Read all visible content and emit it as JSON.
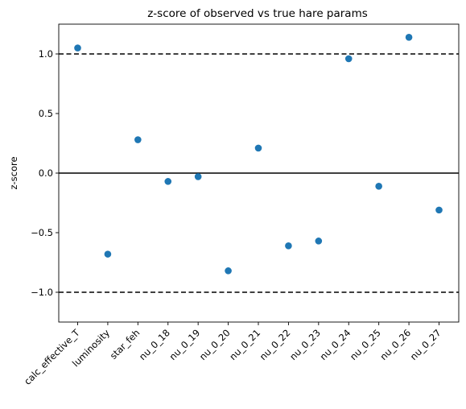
{
  "chart_data": {
    "type": "scatter",
    "title": "z-score of observed vs true hare params",
    "xlabel": "",
    "ylabel": "z-score",
    "categories": [
      "calc_effective_T",
      "luminosity",
      "star_feh",
      "nu_0_18",
      "nu_0_19",
      "nu_0_20",
      "nu_0_21",
      "nu_0_22",
      "nu_0_23",
      "nu_0_24",
      "nu_0_25",
      "nu_0_26",
      "nu_0_27"
    ],
    "values": [
      1.05,
      -0.68,
      0.28,
      -0.07,
      -0.03,
      -0.82,
      0.21,
      -0.61,
      -0.57,
      0.96,
      -0.11,
      1.14,
      -0.31
    ],
    "ylim": [
      -1.25,
      1.25
    ],
    "yticks": [
      -1.0,
      -0.5,
      0.0,
      0.5,
      1.0
    ],
    "ytick_labels": [
      "−1.0",
      "−0.5",
      "0.0",
      "0.5",
      "1.0"
    ],
    "reference_lines": [
      {
        "y": 1.0,
        "style": "dashed"
      },
      {
        "y": 0.0,
        "style": "solid"
      },
      {
        "y": -1.0,
        "style": "dashed"
      }
    ],
    "marker_color": "#1f77b4",
    "grid": false,
    "legend": "none"
  }
}
